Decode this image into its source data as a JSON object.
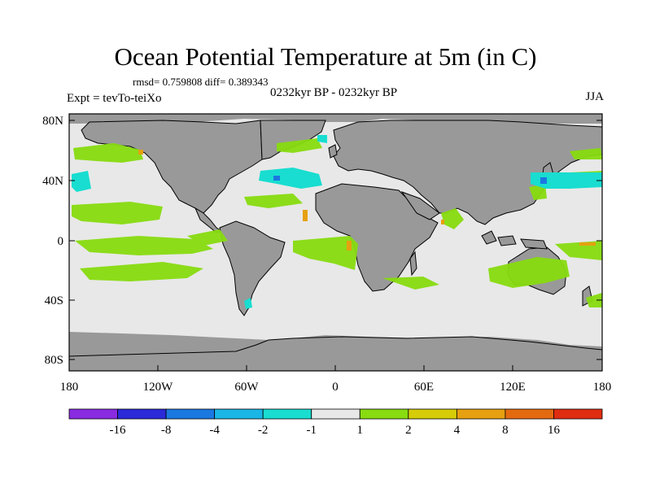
{
  "title": "Ocean Potential Temperature at 5m (in C)",
  "stats": "rmsd= 0.759808 diff= 0.389343",
  "experiment_label": "Expt = tevTo-teiXo",
  "period_label": "0232kyr BP - 0232kyr BP",
  "season_label": "JJA",
  "lat_ticks": [
    "80N",
    "40N",
    "0",
    "40S",
    "80S"
  ],
  "lon_ticks": [
    "180",
    "120W",
    "60W",
    "0",
    "60E",
    "120E",
    "180"
  ],
  "colorbar": {
    "colors": [
      "#8a2be2",
      "#2a2ad8",
      "#1a78e0",
      "#1ab6e6",
      "#18ddd0",
      "#e8e8e8",
      "#88dc10",
      "#d6cc08",
      "#e6a010",
      "#e46a10",
      "#e02c10"
    ],
    "labels": [
      "-16",
      "-8",
      "-4",
      "-2",
      "-1",
      "1",
      "2",
      "4",
      "8",
      "16"
    ]
  },
  "colors": {
    "land": "#999999",
    "ocean_neutral": "#e8e8e8",
    "positive_green": "#88dc10",
    "negative_cyan": "#18ddd0",
    "warm_orange": "#e6a010"
  }
}
